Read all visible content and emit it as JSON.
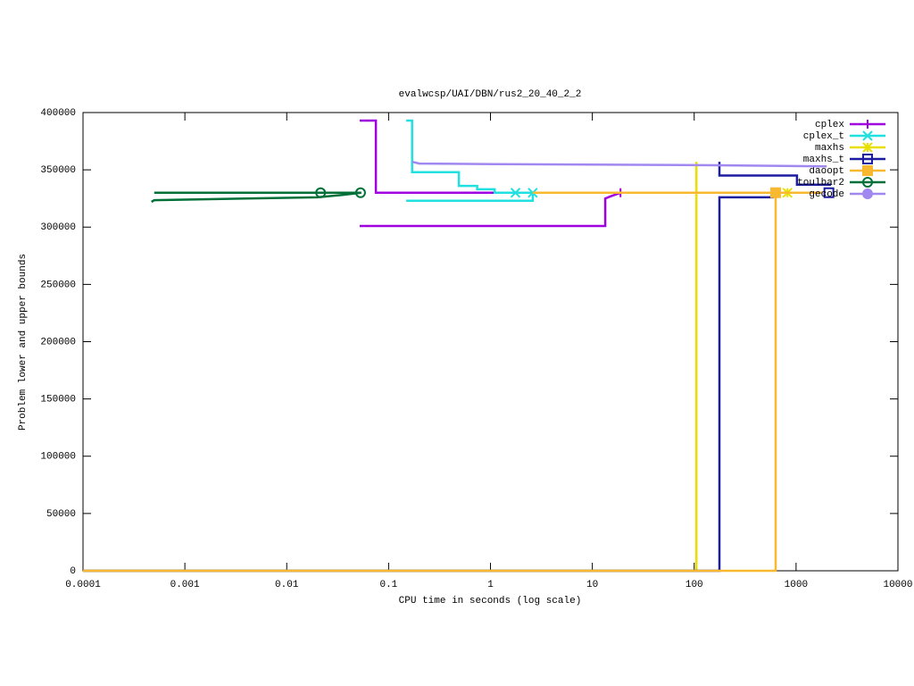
{
  "chart_data": {
    "type": "line",
    "title": "evalwcsp/UAI/DBN/rus2_20_40_2_2",
    "x_label": "CPU time in seconds (log scale)",
    "y_label": "Problem lower and upper bounds",
    "x_log": true,
    "xlim": [
      0.0001,
      10000
    ],
    "ylim": [
      0,
      400000
    ],
    "xticks": [
      0.0001,
      0.001,
      0.01,
      0.1,
      1,
      10,
      100,
      1000,
      10000
    ],
    "yticks": [
      0,
      50000,
      100000,
      150000,
      200000,
      250000,
      300000,
      350000,
      400000
    ],
    "legend": "top-right",
    "series": [
      {
        "name": "cplex",
        "color": "#a000e0",
        "marker": "plus",
        "x": [
          0.052,
          0.075,
          0.075,
          1.12,
          null,
          0.052,
          13.4,
          13.4,
          15.3,
          18.9
        ],
        "values": [
          393000,
          393000,
          330000,
          330000,
          null,
          301000,
          301000,
          325000,
          327000,
          330000
        ],
        "points": {
          "x": [
            18.9
          ],
          "values": [
            330000
          ]
        }
      },
      {
        "name": "cplex_t",
        "color": "#20e0e0",
        "marker": "x",
        "x": [
          0.149,
          0.17,
          0.17,
          0.49,
          0.49,
          0.74,
          0.74,
          1.1,
          1.1,
          2.6,
          null,
          0.149,
          2.6,
          2.6
        ],
        "values": [
          393000,
          393000,
          348000,
          348000,
          336000,
          336000,
          333000,
          333000,
          330000,
          330000,
          null,
          323000,
          323000,
          330000
        ],
        "points": {
          "x": [
            1.76,
            2.6
          ],
          "values": [
            330000,
            330000
          ]
        }
      },
      {
        "name": "maxhs",
        "color": "#e8e000",
        "marker": "star",
        "x": [
          0.0001,
          105,
          105,
          null,
          105,
          1800
        ],
        "values": [
          0,
          0,
          357000,
          null,
          330000,
          330000
        ],
        "points": {
          "x": [
            822
          ],
          "values": [
            330000
          ]
        }
      },
      {
        "name": "maxhs_t",
        "color": "#1c1ca0",
        "marker": "square-open",
        "x": [
          0.0001,
          177,
          177,
          590,
          590,
          null,
          177,
          177,
          1020,
          1020,
          2200
        ],
        "values": [
          0,
          0,
          326000,
          326000,
          330000,
          null,
          357000,
          345000,
          345000,
          337000,
          337000
        ],
        "points": {
          "x": [
            2100
          ],
          "values": [
            330000
          ]
        }
      },
      {
        "name": "daoopt",
        "color": "#f8b830",
        "marker": "square",
        "x": [
          0.0001,
          630,
          630,
          null,
          2.6,
          1800
        ],
        "values": [
          0,
          0,
          330000,
          null,
          330000,
          330000
        ],
        "points": {
          "x": [
            630
          ],
          "values": [
            330000
          ]
        }
      },
      {
        "name": "toulbar2",
        "color": "#007038",
        "marker": "circle-open",
        "x": [
          0.00047,
          0.0005,
          0.02,
          0.035,
          0.054,
          null,
          0.0005,
          0.054
        ],
        "values": [
          322000,
          323500,
          326000,
          328000,
          330000,
          null,
          330000,
          330000
        ],
        "points": {
          "x": [
            0.0215,
            0.053
          ],
          "values": [
            330000,
            330000
          ]
        }
      },
      {
        "name": "gecode",
        "color": "#a088f0",
        "marker": "circle",
        "x": [
          0.17,
          0.2,
          1.1,
          160,
          2000
        ],
        "values": [
          357000,
          355500,
          355000,
          354000,
          353000
        ]
      }
    ]
  }
}
